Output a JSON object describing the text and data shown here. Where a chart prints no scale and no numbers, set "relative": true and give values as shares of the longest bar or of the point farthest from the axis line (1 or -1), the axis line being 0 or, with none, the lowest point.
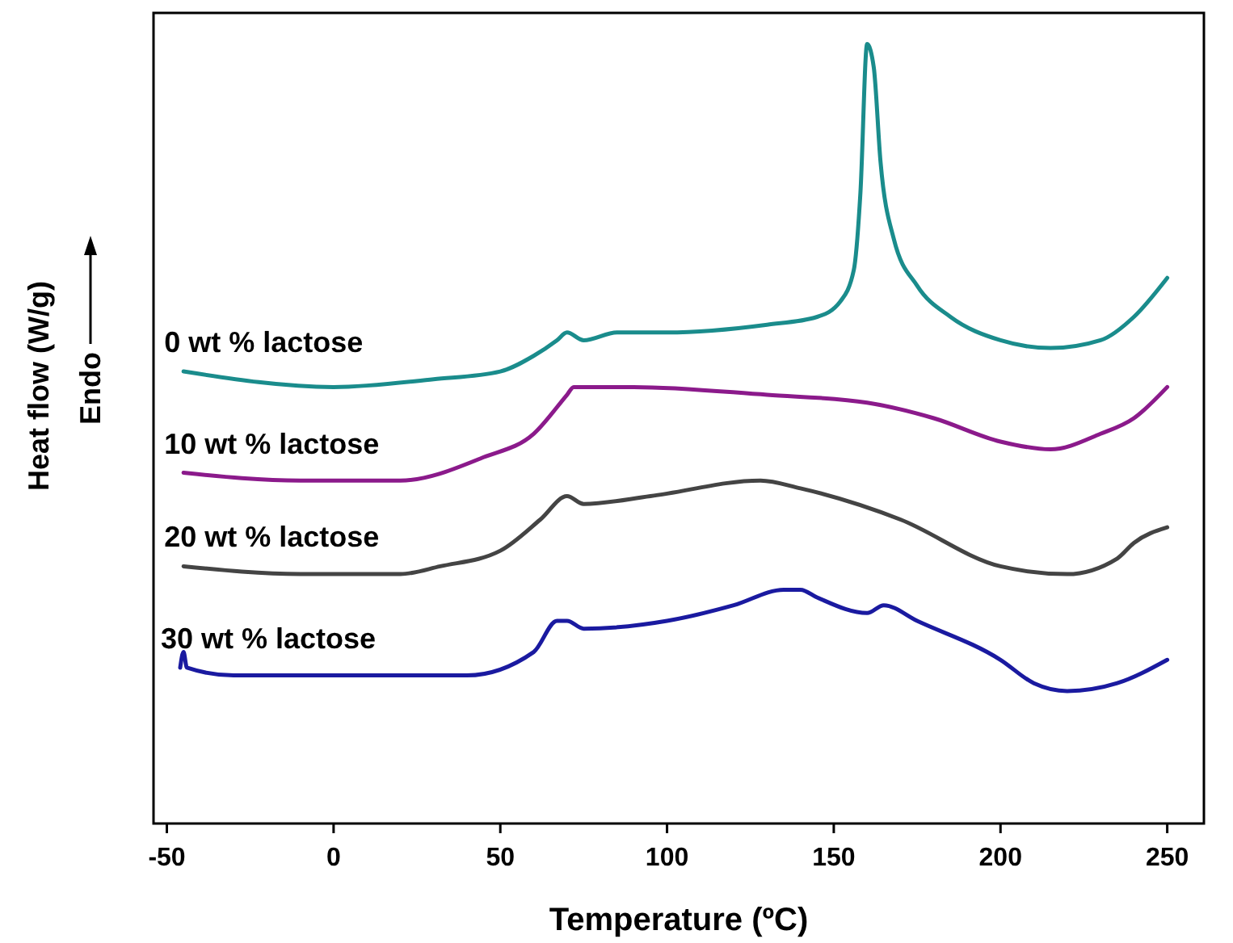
{
  "chart_data": {
    "type": "line",
    "relative": true,
    "xlabel": "Temperature (ºC)",
    "ylabel": "Heat flow (W/g)",
    "annotations": [
      "Endo"
    ],
    "xlim": [
      -54,
      261
    ],
    "xticks": [
      -50,
      0,
      50,
      100,
      150,
      200,
      250
    ],
    "grid": false,
    "line_style": "solid",
    "series": [
      {
        "name": "0 wt % lactose",
        "color": "#1a8c8c",
        "x": [
          -45,
          0,
          30,
          50,
          60,
          67,
          70,
          75,
          85,
          100,
          130,
          145,
          152,
          156,
          158,
          160,
          162,
          164,
          168,
          175,
          185,
          200,
          215,
          230,
          240,
          250
        ],
        "values": [
          0.58,
          0.56,
          0.57,
          0.58,
          0.6,
          0.62,
          0.63,
          0.62,
          0.63,
          0.63,
          0.64,
          0.65,
          0.67,
          0.71,
          0.81,
          1,
          0.97,
          0.85,
          0.75,
          0.69,
          0.65,
          0.62,
          0.61,
          0.62,
          0.65,
          0.7
        ]
      },
      {
        "name": "10 wt % lactose",
        "color": "#8b1a8b",
        "x": [
          -45,
          -10,
          20,
          45,
          60,
          70,
          72,
          90,
          130,
          160,
          180,
          200,
          215,
          230,
          240,
          250
        ],
        "values": [
          0.45,
          0.44,
          0.44,
          0.47,
          0.5,
          0.55,
          0.56,
          0.56,
          0.55,
          0.54,
          0.52,
          0.49,
          0.48,
          0.5,
          0.52,
          0.56
        ]
      },
      {
        "name": "20 wt % lactose",
        "color": "#444444",
        "x": [
          -45,
          -10,
          20,
          32,
          50,
          62,
          70,
          75,
          95,
          128,
          140,
          170,
          200,
          220,
          235,
          240,
          250
        ],
        "values": [
          0.33,
          0.32,
          0.32,
          0.33,
          0.35,
          0.39,
          0.42,
          0.41,
          0.42,
          0.44,
          0.43,
          0.39,
          0.33,
          0.32,
          0.34,
          0.36,
          0.38
        ]
      },
      {
        "name": "30 wt % lactose",
        "color": "#1a1aa0",
        "x": [
          -46,
          -45,
          -44,
          -30,
          0,
          40,
          60,
          67,
          70,
          75,
          100,
          120,
          135,
          140,
          145,
          160,
          165,
          175,
          200,
          210,
          220,
          235,
          250
        ],
        "values": [
          0.2,
          0.22,
          0.2,
          0.19,
          0.19,
          0.19,
          0.22,
          0.26,
          0.26,
          0.25,
          0.26,
          0.28,
          0.3,
          0.3,
          0.29,
          0.27,
          0.28,
          0.26,
          0.21,
          0.18,
          0.17,
          0.18,
          0.21
        ]
      }
    ]
  }
}
